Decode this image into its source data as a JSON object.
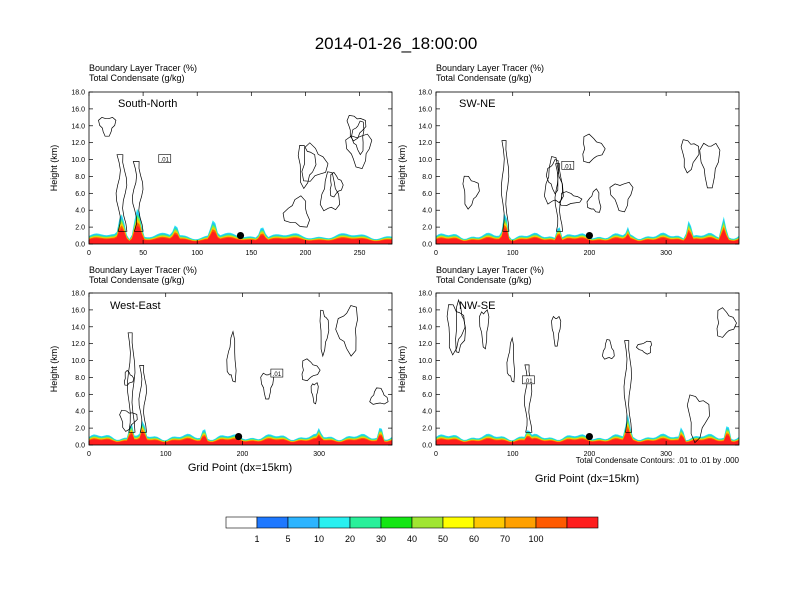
{
  "page_title": "2014-01-26_18:00:00",
  "panel_title_line1": "Boundary Layer Tracer   (%)",
  "panel_title_line2": "Total Condensate   (g/kg)",
  "ylabel": "Height (km)",
  "xlabel": "Grid Point (dx=15km)",
  "contour_note": "Total Condensate Contours: .01 to .01 by .000",
  "contour_label": ".01",
  "palette": [
    "#ffffff",
    "#1e78ff",
    "#2db4ff",
    "#28f0f0",
    "#28f09a",
    "#14e614",
    "#a0e632",
    "#ffff00",
    "#ffc800",
    "#ffa000",
    "#ff5a00",
    "#ff1e1e"
  ],
  "chart_data": [
    {
      "type": "heatmap",
      "name": "South-North",
      "xlim": [
        0,
        280
      ],
      "xticks": [
        0,
        50,
        100,
        150,
        200,
        250
      ],
      "ylim": [
        0,
        18
      ],
      "yticks": [
        0,
        2,
        4,
        6,
        8,
        10,
        12,
        14,
        16,
        18
      ],
      "marker_x": 140,
      "marker_y": 1.0,
      "bump_peaks": [
        [
          30,
          3.5
        ],
        [
          45,
          4.2
        ],
        [
          80,
          2.2
        ],
        [
          115,
          2.8
        ],
        [
          160,
          2.0
        ]
      ]
    },
    {
      "type": "heatmap",
      "name": "SW-NE",
      "xlim": [
        0,
        395
      ],
      "xticks": [
        0,
        100,
        200,
        300
      ],
      "ylim": [
        0,
        18
      ],
      "yticks": [
        0,
        2,
        4,
        6,
        8,
        10,
        12,
        14,
        16,
        18
      ],
      "marker_x": 200,
      "marker_y": 1.0,
      "bump_peaks": [
        [
          90,
          3.8
        ],
        [
          160,
          2.1
        ],
        [
          250,
          2.0
        ],
        [
          330,
          2.8
        ],
        [
          375,
          3.2
        ]
      ]
    },
    {
      "type": "heatmap",
      "name": "West-East",
      "xlim": [
        0,
        395
      ],
      "xticks": [
        0,
        100,
        200,
        300
      ],
      "ylim": [
        0,
        18
      ],
      "yticks": [
        0,
        2,
        4,
        6,
        8,
        10,
        12,
        14,
        16,
        18
      ],
      "marker_x": 195,
      "marker_y": 1.0,
      "bump_peaks": [
        [
          55,
          2.6
        ],
        [
          70,
          3.0
        ],
        [
          150,
          2.0
        ],
        [
          300,
          2.0
        ],
        [
          380,
          2.2
        ]
      ]
    },
    {
      "type": "heatmap",
      "name": "NW-SE",
      "xlim": [
        0,
        395
      ],
      "xticks": [
        0,
        100,
        200,
        300
      ],
      "ylim": [
        0,
        18
      ],
      "yticks": [
        0,
        2,
        4,
        6,
        8,
        10,
        12,
        14,
        16,
        18
      ],
      "marker_x": 200,
      "marker_y": 1.0,
      "bump_peaks": [
        [
          120,
          1.9
        ],
        [
          250,
          3.6
        ],
        [
          320,
          2.1
        ],
        [
          380,
          2.4
        ]
      ]
    }
  ],
  "colorbar": {
    "labels": [
      "1",
      "5",
      "10",
      "20",
      "30",
      "40",
      "50",
      "60",
      "70",
      "100"
    ]
  }
}
